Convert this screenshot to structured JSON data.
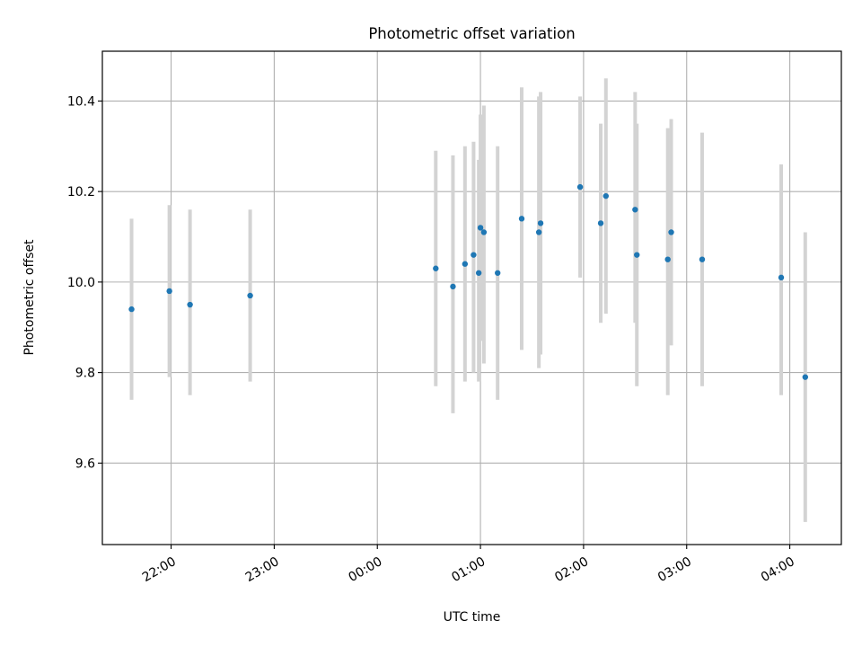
{
  "chart_data": {
    "type": "scatter",
    "title": "Photometric offset variation",
    "xlabel": "UTC time",
    "ylabel": "Photometric offset",
    "xlim": [
      "2023-01-01T21:20",
      "2023-01-02T04:30"
    ],
    "ylim": [
      9.42,
      10.51
    ],
    "xticks": [
      {
        "value": "2023-01-01T22:00",
        "label": "22:00"
      },
      {
        "value": "2023-01-01T23:00",
        "label": "23:00"
      },
      {
        "value": "2023-01-02T00:00",
        "label": "00:00"
      },
      {
        "value": "2023-01-02T01:00",
        "label": "01:00"
      },
      {
        "value": "2023-01-02T02:00",
        "label": "02:00"
      },
      {
        "value": "2023-01-02T03:00",
        "label": "03:00"
      },
      {
        "value": "2023-01-02T04:00",
        "label": "04:00"
      }
    ],
    "yticks": [
      {
        "value": 9.6,
        "label": "9.6"
      },
      {
        "value": 9.8,
        "label": "9.8"
      },
      {
        "value": 10.0,
        "label": "10.0"
      },
      {
        "value": 10.2,
        "label": "10.2"
      },
      {
        "value": 10.4,
        "label": "10.4"
      }
    ],
    "grid": true,
    "marker_color": "#1f77b4",
    "errorbar_color": "#d3d3d3",
    "points": [
      {
        "x": "2023-01-01T21:37",
        "y": 9.94,
        "yerr_low": 9.74,
        "yerr_high": 10.14
      },
      {
        "x": "2023-01-01T21:59",
        "y": 9.98,
        "yerr_low": 9.79,
        "yerr_high": 10.17
      },
      {
        "x": "2023-01-01T22:11",
        "y": 9.95,
        "yerr_low": 9.75,
        "yerr_high": 10.16
      },
      {
        "x": "2023-01-01T22:46",
        "y": 9.97,
        "yerr_low": 9.78,
        "yerr_high": 10.16
      },
      {
        "x": "2023-01-02T00:34",
        "y": 10.03,
        "yerr_low": 9.77,
        "yerr_high": 10.29
      },
      {
        "x": "2023-01-02T00:44",
        "y": 9.99,
        "yerr_low": 9.71,
        "yerr_high": 10.28
      },
      {
        "x": "2023-01-02T00:51",
        "y": 10.04,
        "yerr_low": 9.78,
        "yerr_high": 10.3
      },
      {
        "x": "2023-01-02T00:56",
        "y": 10.06,
        "yerr_low": 9.8,
        "yerr_high": 10.31
      },
      {
        "x": "2023-01-02T00:59",
        "y": 10.02,
        "yerr_low": 9.78,
        "yerr_high": 10.27
      },
      {
        "x": "2023-01-02T01:00",
        "y": 10.12,
        "yerr_low": 9.87,
        "yerr_high": 10.37
      },
      {
        "x": "2023-01-02T01:02",
        "y": 10.11,
        "yerr_low": 9.82,
        "yerr_high": 10.39
      },
      {
        "x": "2023-01-02T01:10",
        "y": 10.02,
        "yerr_low": 9.74,
        "yerr_high": 10.3
      },
      {
        "x": "2023-01-02T01:24",
        "y": 10.14,
        "yerr_low": 9.85,
        "yerr_high": 10.43
      },
      {
        "x": "2023-01-02T01:34",
        "y": 10.11,
        "yerr_low": 9.81,
        "yerr_high": 10.41
      },
      {
        "x": "2023-01-02T01:35",
        "y": 10.13,
        "yerr_low": 9.84,
        "yerr_high": 10.42
      },
      {
        "x": "2023-01-02T01:58",
        "y": 10.21,
        "yerr_low": 10.01,
        "yerr_high": 10.41
      },
      {
        "x": "2023-01-02T02:10",
        "y": 10.13,
        "yerr_low": 9.91,
        "yerr_high": 10.35
      },
      {
        "x": "2023-01-02T02:13",
        "y": 10.19,
        "yerr_low": 9.93,
        "yerr_high": 10.45
      },
      {
        "x": "2023-01-02T02:30",
        "y": 10.16,
        "yerr_low": 9.91,
        "yerr_high": 10.42
      },
      {
        "x": "2023-01-02T02:31",
        "y": 10.06,
        "yerr_low": 9.77,
        "yerr_high": 10.35
      },
      {
        "x": "2023-01-02T02:49",
        "y": 10.05,
        "yerr_low": 9.75,
        "yerr_high": 10.34
      },
      {
        "x": "2023-01-02T02:51",
        "y": 10.11,
        "yerr_low": 9.86,
        "yerr_high": 10.36
      },
      {
        "x": "2023-01-02T03:09",
        "y": 10.05,
        "yerr_low": 9.77,
        "yerr_high": 10.33
      },
      {
        "x": "2023-01-02T03:55",
        "y": 10.01,
        "yerr_low": 9.75,
        "yerr_high": 10.26
      },
      {
        "x": "2023-01-02T04:09",
        "y": 9.79,
        "yerr_low": 9.47,
        "yerr_high": 10.11
      }
    ]
  }
}
